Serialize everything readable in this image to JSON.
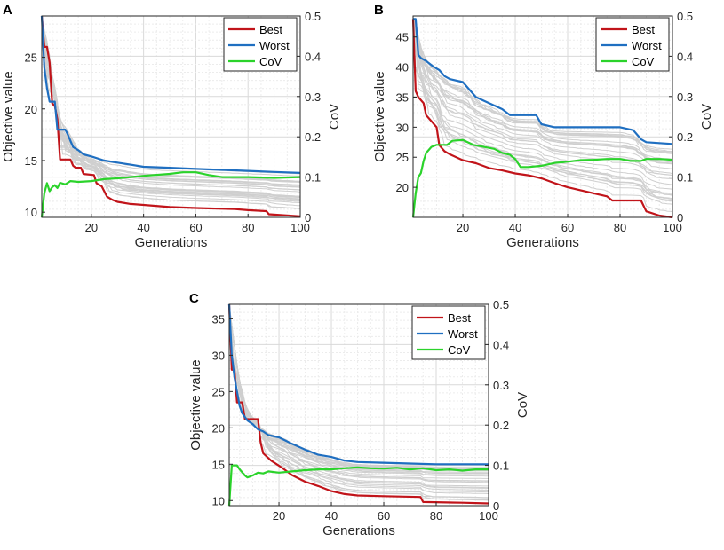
{
  "chart_data": [
    {
      "panel": "A",
      "type": "line",
      "xlabel": "Generations",
      "ylabel": "Objective value",
      "y2label": "CoV",
      "xlim": [
        1,
        100
      ],
      "ylim": [
        9.5,
        29
      ],
      "y2lim": [
        0,
        0.5
      ],
      "xticks": [
        20,
        40,
        60,
        80,
        100
      ],
      "yticks": [
        10,
        15,
        20,
        25
      ],
      "y2ticks": [
        0,
        0.1,
        0.2,
        0.3,
        0.4,
        0.5
      ],
      "grid": true,
      "legend": {
        "position": "top-right",
        "entries": [
          "Best",
          "Worst",
          "CoV"
        ]
      },
      "series": [
        {
          "name": "Best",
          "axis": "left",
          "color": "#c1141a",
          "points": [
            [
              1,
              29
            ],
            [
              2,
              26
            ],
            [
              3,
              26
            ],
            [
              4,
              24.5
            ],
            [
              5,
              20.5
            ],
            [
              6,
              20.3
            ],
            [
              7,
              19
            ],
            [
              8,
              15.1
            ],
            [
              12,
              15.1
            ],
            [
              13,
              14.5
            ],
            [
              14,
              14.3
            ],
            [
              16,
              14.3
            ],
            [
              17,
              13.7
            ],
            [
              21,
              13.6
            ],
            [
              22,
              12.8
            ],
            [
              24,
              12.5
            ],
            [
              26,
              11.5
            ],
            [
              28,
              11.2
            ],
            [
              30,
              11
            ],
            [
              35,
              10.8
            ],
            [
              40,
              10.7
            ],
            [
              50,
              10.5
            ],
            [
              60,
              10.4
            ],
            [
              75,
              10.3
            ],
            [
              80,
              10.2
            ],
            [
              87,
              10.1
            ],
            [
              88,
              9.8
            ],
            [
              100,
              9.6
            ]
          ]
        },
        {
          "name": "Worst",
          "axis": "left",
          "color": "#1f6fc1",
          "points": [
            [
              1,
              29
            ],
            [
              2,
              24
            ],
            [
              3,
              22
            ],
            [
              4,
              20.7
            ],
            [
              6,
              20.7
            ],
            [
              7,
              18
            ],
            [
              10,
              18
            ],
            [
              11,
              17.5
            ],
            [
              13,
              16.3
            ],
            [
              15,
              16
            ],
            [
              17,
              15.6
            ],
            [
              20,
              15.4
            ],
            [
              25,
              15
            ],
            [
              30,
              14.8
            ],
            [
              35,
              14.6
            ],
            [
              40,
              14.4
            ],
            [
              50,
              14.3
            ],
            [
              60,
              14.2
            ],
            [
              70,
              14.1
            ],
            [
              80,
              14
            ],
            [
              90,
              13.9
            ],
            [
              100,
              13.8
            ]
          ]
        },
        {
          "name": "CoV",
          "axis": "right",
          "color": "#2bd32b",
          "points": [
            [
              1,
              0
            ],
            [
              2,
              0.06
            ],
            [
              3,
              0.085
            ],
            [
              4,
              0.065
            ],
            [
              5,
              0.075
            ],
            [
              6,
              0.08
            ],
            [
              7,
              0.073
            ],
            [
              8,
              0.086
            ],
            [
              10,
              0.082
            ],
            [
              12,
              0.09
            ],
            [
              15,
              0.088
            ],
            [
              20,
              0.09
            ],
            [
              25,
              0.095
            ],
            [
              30,
              0.097
            ],
            [
              35,
              0.1
            ],
            [
              40,
              0.103
            ],
            [
              50,
              0.108
            ],
            [
              55,
              0.112
            ],
            [
              60,
              0.112
            ],
            [
              65,
              0.105
            ],
            [
              70,
              0.1
            ],
            [
              80,
              0.1
            ],
            [
              90,
              0.098
            ],
            [
              100,
              0.1
            ]
          ]
        }
      ]
    },
    {
      "panel": "B",
      "type": "line",
      "xlabel": "Generations",
      "ylabel": "Objective value",
      "y2label": "CoV",
      "xlim": [
        1,
        100
      ],
      "ylim": [
        15,
        48.5
      ],
      "y2lim": [
        0,
        0.5
      ],
      "xticks": [
        20,
        40,
        60,
        80,
        100
      ],
      "yticks": [
        20,
        25,
        30,
        35,
        40,
        45
      ],
      "y2ticks": [
        0,
        0.1,
        0.2,
        0.3,
        0.4,
        0.5
      ],
      "grid": true,
      "legend": {
        "position": "top-right",
        "entries": [
          "Best",
          "Worst",
          "CoV"
        ]
      },
      "series": [
        {
          "name": "Best",
          "axis": "left",
          "color": "#c1141a",
          "points": [
            [
              1,
              48
            ],
            [
              2,
              36
            ],
            [
              3,
              35
            ],
            [
              5,
              34
            ],
            [
              6,
              32
            ],
            [
              8,
              31
            ],
            [
              10,
              30
            ],
            [
              11,
              27
            ],
            [
              13,
              26
            ],
            [
              15,
              25.5
            ],
            [
              20,
              24.5
            ],
            [
              25,
              24
            ],
            [
              30,
              23.2
            ],
            [
              35,
              22.8
            ],
            [
              40,
              22.3
            ],
            [
              45,
              22
            ],
            [
              50,
              21.5
            ],
            [
              55,
              20.7
            ],
            [
              60,
              20
            ],
            [
              70,
              19
            ],
            [
              75,
              18.5
            ],
            [
              77,
              17.8
            ],
            [
              88,
              17.8
            ],
            [
              90,
              16
            ],
            [
              95,
              15.3
            ],
            [
              100,
              15
            ]
          ]
        },
        {
          "name": "Worst",
          "axis": "left",
          "color": "#1f6fc1",
          "points": [
            [
              1,
              48
            ],
            [
              2,
              48
            ],
            [
              3,
              42
            ],
            [
              4,
              41.5
            ],
            [
              6,
              41
            ],
            [
              9,
              40
            ],
            [
              11,
              39.5
            ],
            [
              13,
              38.5
            ],
            [
              15,
              38
            ],
            [
              20,
              37.5
            ],
            [
              25,
              35
            ],
            [
              30,
              34
            ],
            [
              35,
              33
            ],
            [
              38,
              32
            ],
            [
              48,
              32
            ],
            [
              50,
              30.5
            ],
            [
              55,
              30
            ],
            [
              70,
              30
            ],
            [
              80,
              30
            ],
            [
              85,
              29.5
            ],
            [
              88,
              28
            ],
            [
              90,
              27.5
            ],
            [
              100,
              27.2
            ]
          ]
        },
        {
          "name": "CoV",
          "axis": "right",
          "color": "#2bd32b",
          "points": [
            [
              1,
              0
            ],
            [
              2,
              0.06
            ],
            [
              3,
              0.1
            ],
            [
              4,
              0.11
            ],
            [
              5,
              0.14
            ],
            [
              6,
              0.16
            ],
            [
              8,
              0.175
            ],
            [
              10,
              0.18
            ],
            [
              14,
              0.18
            ],
            [
              16,
              0.19
            ],
            [
              20,
              0.192
            ],
            [
              24,
              0.18
            ],
            [
              28,
              0.175
            ],
            [
              32,
              0.17
            ],
            [
              35,
              0.16
            ],
            [
              38,
              0.155
            ],
            [
              40,
              0.145
            ],
            [
              42,
              0.125
            ],
            [
              45,
              0.125
            ],
            [
              50,
              0.128
            ],
            [
              55,
              0.135
            ],
            [
              60,
              0.138
            ],
            [
              65,
              0.142
            ],
            [
              70,
              0.143
            ],
            [
              75,
              0.145
            ],
            [
              80,
              0.145
            ],
            [
              84,
              0.14
            ],
            [
              88,
              0.14
            ],
            [
              90,
              0.145
            ],
            [
              95,
              0.145
            ],
            [
              100,
              0.143
            ]
          ]
        }
      ]
    },
    {
      "panel": "C",
      "type": "line",
      "xlabel": "Generations",
      "ylabel": "Objective value",
      "y2label": "CoV",
      "xlim": [
        1,
        100
      ],
      "ylim": [
        9.3,
        37
      ],
      "y2lim": [
        0,
        0.5
      ],
      "xticks": [
        20,
        40,
        60,
        80,
        100
      ],
      "yticks": [
        10,
        15,
        20,
        25,
        30,
        35
      ],
      "y2ticks": [
        0,
        0.1,
        0.2,
        0.3,
        0.4,
        0.5
      ],
      "grid": true,
      "legend": {
        "position": "top-right",
        "entries": [
          "Best",
          "Worst",
          "CoV"
        ]
      },
      "series": [
        {
          "name": "Best",
          "axis": "left",
          "color": "#c1141a",
          "points": [
            [
              1,
              37
            ],
            [
              2,
              28
            ],
            [
              3,
              28
            ],
            [
              4,
              23.5
            ],
            [
              6,
              23.5
            ],
            [
              7,
              21.2
            ],
            [
              12,
              21.2
            ],
            [
              13,
              18
            ],
            [
              14,
              16.5
            ],
            [
              17,
              15.5
            ],
            [
              20,
              14.8
            ],
            [
              22,
              14.3
            ],
            [
              25,
              13.5
            ],
            [
              30,
              12.6
            ],
            [
              35,
              12
            ],
            [
              40,
              11.3
            ],
            [
              45,
              10.9
            ],
            [
              50,
              10.7
            ],
            [
              60,
              10.6
            ],
            [
              74,
              10.5
            ],
            [
              75,
              9.8
            ],
            [
              90,
              9.7
            ],
            [
              100,
              9.6
            ]
          ]
        },
        {
          "name": "Worst",
          "axis": "left",
          "color": "#1f6fc1",
          "points": [
            [
              1,
              37
            ],
            [
              2,
              30
            ],
            [
              3,
              27
            ],
            [
              4,
              25
            ],
            [
              5,
              23
            ],
            [
              6,
              22
            ],
            [
              8,
              21
            ],
            [
              10,
              20.5
            ],
            [
              12,
              19.8
            ],
            [
              14,
              19.5
            ],
            [
              16,
              19
            ],
            [
              20,
              18.7
            ],
            [
              25,
              17.8
            ],
            [
              30,
              17
            ],
            [
              35,
              16.3
            ],
            [
              40,
              16
            ],
            [
              45,
              15.5
            ],
            [
              50,
              15.3
            ],
            [
              60,
              15.2
            ],
            [
              70,
              15.1
            ],
            [
              80,
              15
            ],
            [
              90,
              15
            ],
            [
              100,
              15
            ]
          ]
        },
        {
          "name": "CoV",
          "axis": "right",
          "color": "#2bd32b",
          "points": [
            [
              1,
              0
            ],
            [
              2,
              0.1
            ],
            [
              4,
              0.1
            ],
            [
              5,
              0.09
            ],
            [
              7,
              0.075
            ],
            [
              8,
              0.07
            ],
            [
              10,
              0.075
            ],
            [
              12,
              0.082
            ],
            [
              14,
              0.08
            ],
            [
              16,
              0.085
            ],
            [
              20,
              0.082
            ],
            [
              25,
              0.085
            ],
            [
              30,
              0.088
            ],
            [
              35,
              0.09
            ],
            [
              40,
              0.09
            ],
            [
              45,
              0.093
            ],
            [
              50,
              0.095
            ],
            [
              55,
              0.093
            ],
            [
              60,
              0.092
            ],
            [
              65,
              0.094
            ],
            [
              70,
              0.09
            ],
            [
              75,
              0.093
            ],
            [
              80,
              0.088
            ],
            [
              85,
              0.09
            ],
            [
              90,
              0.087
            ],
            [
              95,
              0.09
            ],
            [
              100,
              0.09
            ]
          ]
        }
      ]
    }
  ]
}
